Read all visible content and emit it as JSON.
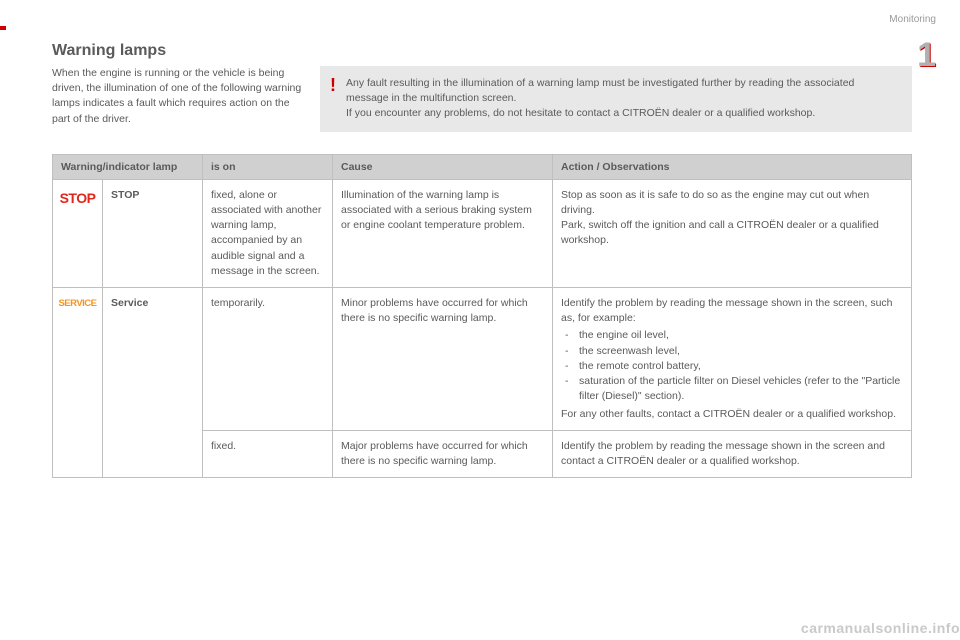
{
  "header": {
    "section": "Monitoring",
    "chapter": "1"
  },
  "title": "Warning lamps",
  "intro": "When the engine is running or the vehicle is being driven, the illumination of one of the following warning lamps indicates a fault which requires action on the part of the driver.",
  "callout": {
    "line1": "Any fault resulting in the illumination of a warning lamp must be investigated further by reading the associated message in the multifunction screen.",
    "line2": "If you encounter any problems, do not hesitate to contact a CITROËN dealer or a qualified workshop."
  },
  "table": {
    "headers": {
      "lamp": "Warning/indicator lamp",
      "ison": "is on",
      "cause": "Cause",
      "action": "Action / Observations"
    },
    "rows": {
      "stop": {
        "icon": "STOP",
        "name": "STOP",
        "ison": "fixed, alone or associated with another warning lamp, accompanied by an audible signal and a message in the screen.",
        "cause": "Illumination of the warning lamp is associated with a serious braking system or engine coolant temperature problem.",
        "action_l1": "Stop as soon as it is safe to do so as the engine may cut out when driving.",
        "action_l2": "Park, switch off the ignition and call a CITROËN dealer or a qualified workshop."
      },
      "service1": {
        "icon": "SERVICE",
        "name": "Service",
        "ison": "temporarily.",
        "cause": "Minor problems have occurred for which there is no specific warning lamp.",
        "action_intro": "Identify the problem by reading the message shown in the screen, such as, for example:",
        "bullets": {
          "b1": "the engine oil level,",
          "b2": "the screenwash level,",
          "b3": "the remote control battery,",
          "b4": "saturation of the particle filter on Diesel vehicles (refer to the \"Particle filter (Diesel)\" section)."
        },
        "action_outro": "For any other faults, contact a CITROËN dealer or a qualified workshop."
      },
      "service2": {
        "ison": "fixed.",
        "cause": "Major problems have occurred for which there is no specific warning lamp.",
        "action": "Identify the problem by reading the message shown in the screen and contact a CITROËN dealer or a qualified workshop."
      }
    }
  },
  "watermark": "carmanualsonline.info",
  "colors": {
    "accent_red": "#c00",
    "stop_red": "#e1261c",
    "service_orange": "#f7941d",
    "header_bg": "#d0d0d0",
    "callout_bg": "#e8e8e8",
    "border": "#bfbfbf",
    "text": "#5a5a5a",
    "muted": "#999999",
    "watermark": "#c9c9c9"
  }
}
